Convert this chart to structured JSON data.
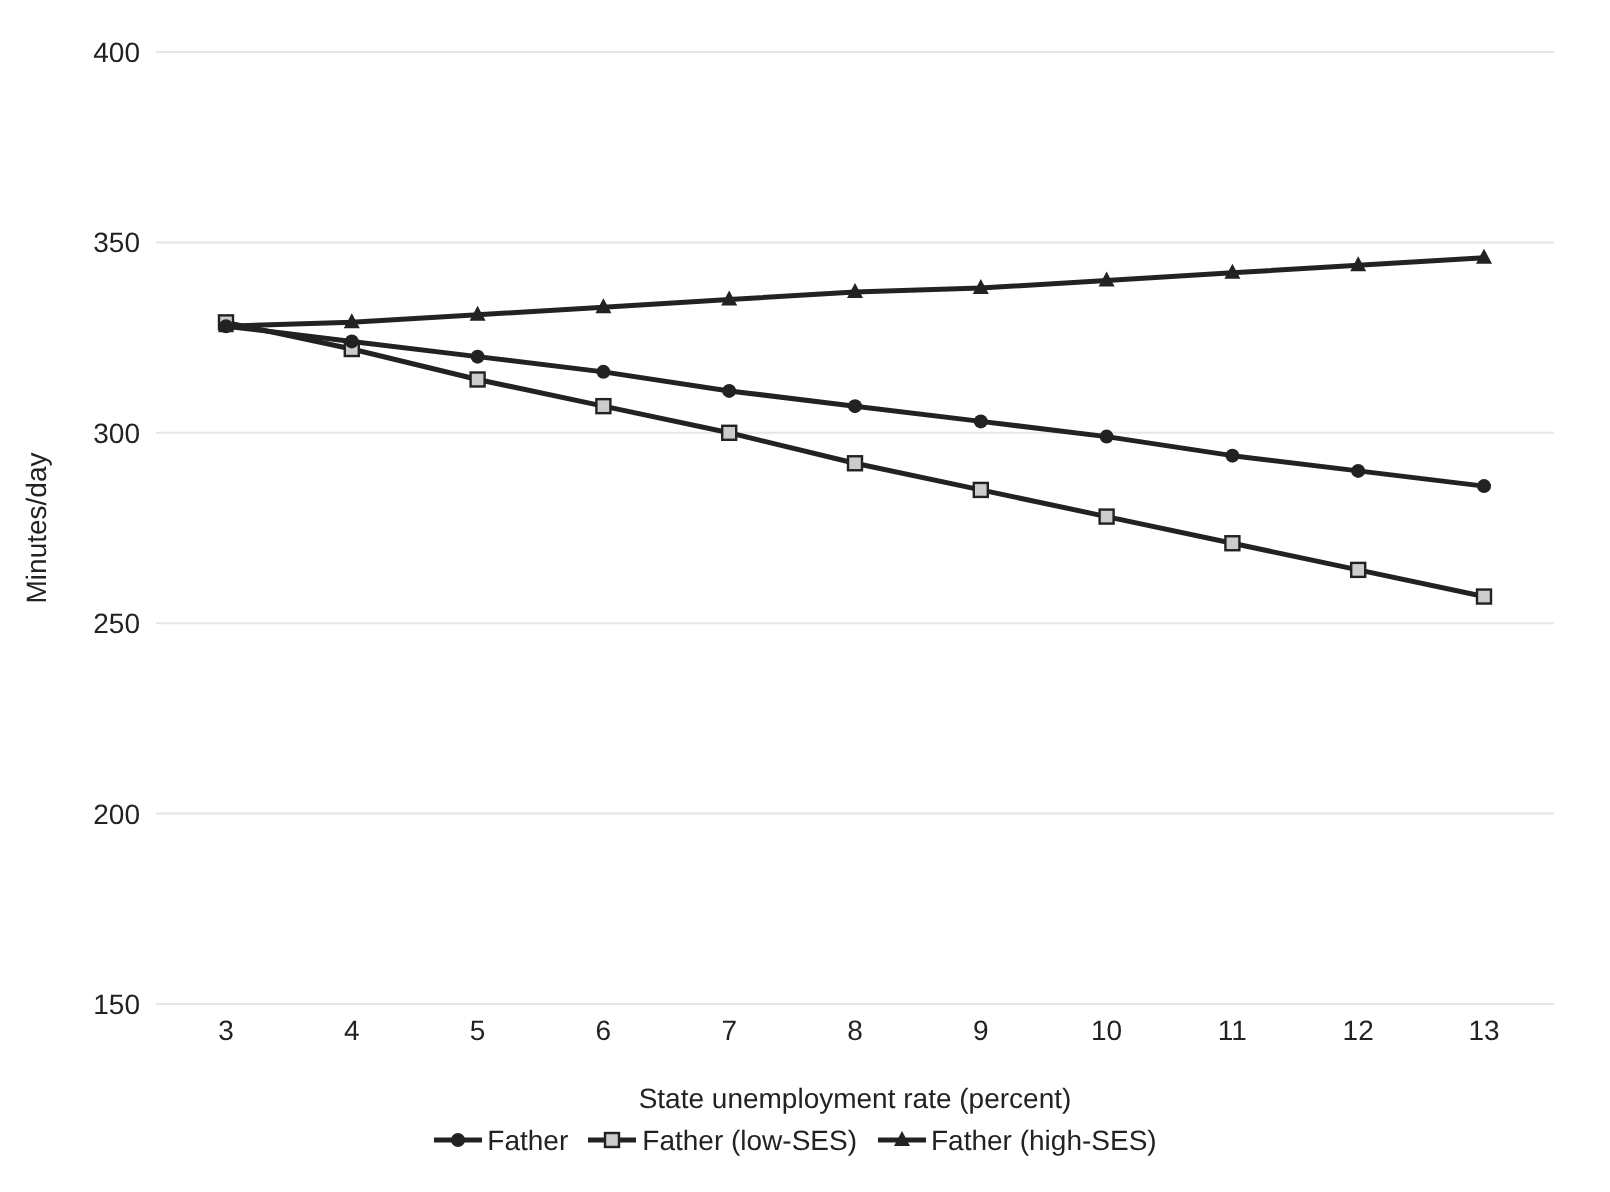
{
  "chart_data": {
    "type": "line",
    "xlabel": "State unemployment rate (percent)",
    "ylabel": "Minutes/day",
    "categories": [
      "3",
      "4",
      "5",
      "6",
      "7",
      "8",
      "9",
      "10",
      "11",
      "12",
      "13"
    ],
    "ylim": [
      150,
      400
    ],
    "yticks": [
      150,
      200,
      250,
      300,
      350,
      400
    ],
    "grid": "y",
    "legend": "bottom",
    "series": [
      {
        "name": "Father",
        "color": "#222222",
        "marker": "circle",
        "values": [
          328,
          324,
          320,
          316,
          311,
          307,
          303,
          299,
          294,
          290,
          286
        ]
      },
      {
        "name": "Father (low-SES)",
        "color": "#222222",
        "marker": "square",
        "values": [
          329,
          322,
          314,
          307,
          300,
          292,
          285,
          278,
          271,
          264,
          257
        ]
      },
      {
        "name": "Father (high-SES)",
        "color": "#222222",
        "marker": "triangle",
        "values": [
          328,
          329,
          331,
          333,
          335,
          337,
          338,
          340,
          342,
          344,
          346
        ]
      }
    ]
  }
}
